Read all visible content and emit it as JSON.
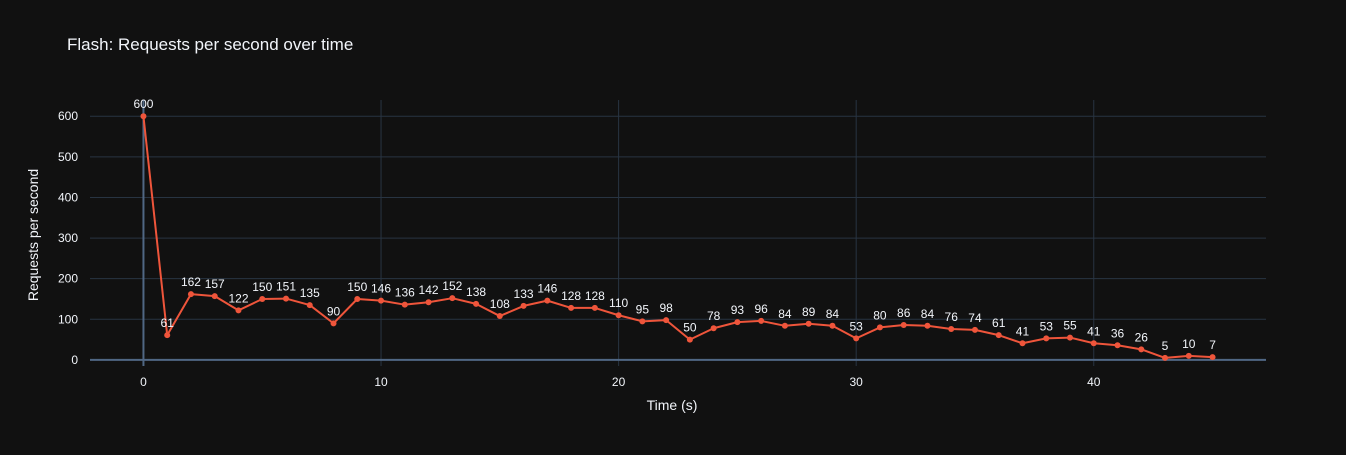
{
  "chart_data": {
    "type": "line",
    "title": "Flash: Requests per second over time",
    "xlabel": "Time (s)",
    "ylabel": "Requests per second",
    "xlim": [
      -2.25,
      47.25
    ],
    "ylim": [
      -15,
      640
    ],
    "xticks": [
      0,
      10,
      20,
      30,
      40
    ],
    "yticks": [
      0,
      100,
      200,
      300,
      400,
      500,
      600
    ],
    "grid": true,
    "legend": "none",
    "line_color": "#EF553B",
    "background": "#111111",
    "grid_color": "#283442",
    "text_color": "#f2f5fa",
    "series": [
      {
        "x": [
          0,
          1,
          2,
          3,
          4,
          5,
          6,
          7,
          8,
          9,
          10,
          11,
          12,
          13,
          14,
          15,
          16,
          17,
          18,
          19,
          20,
          21,
          22,
          23,
          24,
          25,
          26,
          27,
          28,
          29,
          30,
          31,
          32,
          33,
          34,
          35,
          36,
          37,
          38,
          39,
          40,
          41,
          42,
          43,
          44,
          45
        ],
        "values": [
          600,
          61,
          162,
          157,
          122,
          150,
          151,
          135,
          90,
          150,
          146,
          136,
          142,
          152,
          138,
          108,
          133,
          146,
          128,
          128,
          110,
          95,
          98,
          50,
          78,
          93,
          96,
          84,
          89,
          84,
          53,
          80,
          86,
          84,
          76,
          74,
          61,
          41,
          53,
          55,
          41,
          36,
          26,
          5,
          10,
          7
        ]
      }
    ]
  }
}
